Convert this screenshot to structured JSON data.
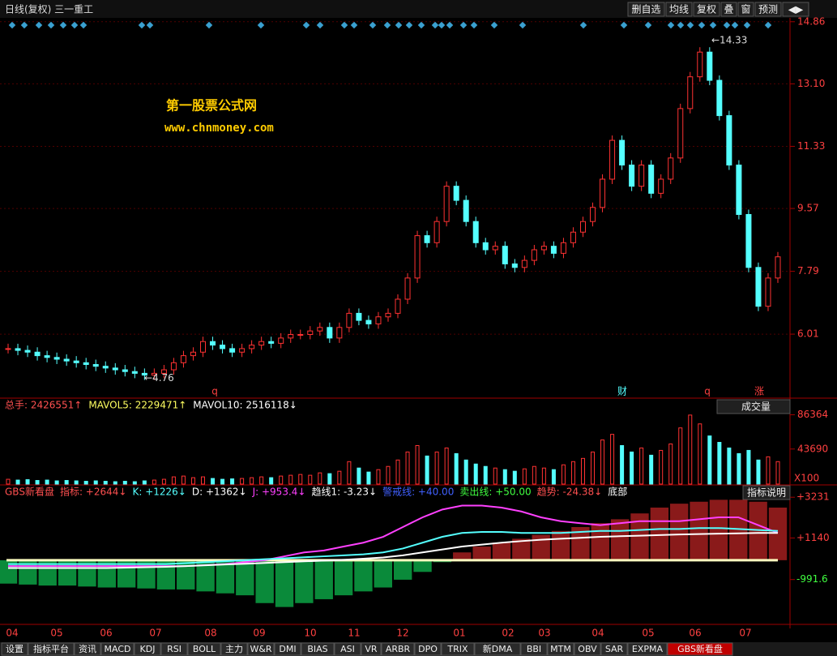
{
  "toolbar": {
    "title": "日线(复权) 三一重工",
    "buttons": [
      "删自选",
      "均线",
      "复权",
      "叠",
      "窗",
      "预测",
      "◀▶"
    ]
  },
  "chart_data": [
    {
      "type": "candlestick",
      "name": "price",
      "values": [
        5.6,
        5.55,
        5.5,
        5.4,
        5.35,
        5.3,
        5.25,
        5.2,
        5.15,
        5.1,
        5.05,
        5.0,
        4.95,
        4.9,
        4.85,
        4.9,
        5.0,
        5.2,
        5.4,
        5.5,
        5.8,
        5.7,
        5.6,
        5.5,
        5.6,
        5.7,
        5.8,
        5.75,
        5.9,
        6.0,
        6.0,
        6.1,
        6.2,
        5.9,
        6.2,
        6.6,
        6.4,
        6.3,
        6.5,
        6.6,
        7.0,
        7.6,
        8.8,
        8.6,
        9.2,
        10.2,
        9.8,
        9.2,
        8.6,
        8.4,
        8.5,
        8.0,
        7.9,
        8.1,
        8.4,
        8.5,
        8.3,
        8.6,
        8.9,
        9.2,
        9.6,
        10.4,
        11.5,
        10.8,
        10.2,
        10.8,
        10.0,
        10.4,
        11.0,
        12.4,
        13.3,
        14.0,
        13.2,
        12.2,
        10.8,
        9.4,
        7.9,
        6.8,
        7.6,
        8.2
      ],
      "up_color": "#ff3232",
      "down_color": "#54ffff",
      "ylim": [
        4.22,
        14.97
      ],
      "yticks": [
        6.01,
        7.79,
        9.57,
        11.33,
        {
          "value": 13.1,
          "label": "13.10"
        },
        14.86
      ],
      "annotations": [
        {
          "label": "←14.33",
          "value": 14.33
        },
        {
          "label": "←4.76",
          "value": 4.76
        }
      ],
      "watermark": [
        "第一股票公式网",
        "www.chnmoney.com"
      ],
      "markers": [
        "q",
        "财",
        "q",
        "涨"
      ],
      "xlabels": [
        "04",
        "05",
        "06",
        "07",
        "08",
        "09",
        "10",
        "11",
        "12",
        "01",
        "02",
        "03",
        "04",
        "05",
        "06",
        "07"
      ]
    },
    {
      "type": "bar",
      "name": "volume",
      "header": [
        {
          "text": "总手: 2426551↑",
          "color": "#ff5050"
        },
        {
          "text": "MAVOL5: 2229471↑",
          "color": "#ffff60"
        },
        {
          "text": "MAVOL10: 2516118↓",
          "color": "#ffffff"
        }
      ],
      "selector": "成交量",
      "values": [
        6000,
        5000,
        5500,
        4500,
        5000,
        4000,
        4500,
        4000,
        3500,
        4000,
        3500,
        3000,
        3500,
        3000,
        4000,
        5000,
        6000,
        9000,
        10000,
        8000,
        9000,
        7000,
        6000,
        6500,
        7000,
        8000,
        9000,
        8000,
        10000,
        11000,
        12000,
        11000,
        14000,
        13000,
        16000,
        28000,
        20000,
        15000,
        18000,
        22000,
        30000,
        40000,
        48000,
        35000,
        40000,
        45000,
        38000,
        30000,
        25000,
        22000,
        20000,
        18000,
        16000,
        19000,
        22000,
        20000,
        18000,
        24000,
        28000,
        32000,
        40000,
        55000,
        62000,
        48000,
        40000,
        45000,
        36000,
        42000,
        50000,
        70000,
        86000,
        75000,
        60000,
        52000,
        45000,
        38000,
        42000,
        30000,
        34000,
        28000
      ],
      "ylim": [
        0,
        98000
      ],
      "yticks": [
        86364,
        43690
      ],
      "unit": "X100"
    },
    {
      "type": "indicator",
      "name": "gbs",
      "header": [
        {
          "text": "GBS新看盘",
          "color": "#ff5050"
        },
        {
          "text": "指标: +2644↓",
          "color": "#ff5050"
        },
        {
          "text": "K: +1226↓",
          "color": "#54ffff"
        },
        {
          "text": "D: +1362↓",
          "color": "#ffffff"
        },
        {
          "text": "J: +953.4↓",
          "color": "#ff40ff"
        },
        {
          "text": "趋线1: -3.23↓",
          "color": "#ffffff"
        },
        {
          "text": "警戒线: +40.00",
          "color": "#4060ff"
        },
        {
          "text": "卖出线: +50.00",
          "color": "#40ff40"
        },
        {
          "text": "趋势: -24.38↓",
          "color": "#ff5050"
        },
        {
          "text": "底部",
          "color": "#ffffff"
        }
      ],
      "button": "指标说明",
      "values": [
        -1200,
        -1250,
        -1300,
        -1300,
        -1350,
        -1400,
        -1400,
        -1450,
        -1500,
        -1500,
        -1600,
        -1700,
        -1800,
        -2200,
        -2400,
        -2200,
        -2000,
        -1800,
        -1600,
        -1400,
        -1000,
        -600,
        -100,
        400,
        700,
        900,
        1100,
        1300,
        1500,
        1700,
        1900,
        2100,
        2400,
        2700,
        2900,
        3000,
        3100,
        3100,
        3000,
        2700
      ],
      "series": [
        {
          "name": "J",
          "color": "#ff40ff",
          "values": [
            -300,
            -300,
            -300,
            -300,
            -300,
            -300,
            -300,
            -300,
            -300,
            -300,
            -250,
            -200,
            -100,
            0,
            200,
            400,
            500,
            700,
            900,
            1200,
            1700,
            2200,
            2600,
            2800,
            2800,
            2700,
            2500,
            2200,
            2000,
            1900,
            1800,
            1900,
            2000,
            2000,
            2000,
            2100,
            2200,
            2200,
            1800,
            1400
          ]
        },
        {
          "name": "K",
          "color": "#54ffff",
          "values": [
            -200,
            -200,
            -200,
            -200,
            -200,
            -200,
            -200,
            -200,
            -200,
            -150,
            -100,
            -50,
            0,
            50,
            100,
            150,
            200,
            250,
            300,
            400,
            600,
            900,
            1200,
            1400,
            1450,
            1450,
            1400,
            1400,
            1400,
            1450,
            1500,
            1500,
            1550,
            1600,
            1600,
            1650,
            1650,
            1600,
            1550,
            1500
          ]
        },
        {
          "name": "D",
          "color": "#ffffff",
          "values": [
            -400,
            -400,
            -400,
            -400,
            -400,
            -400,
            -380,
            -360,
            -340,
            -300,
            -260,
            -220,
            -180,
            -140,
            -100,
            -60,
            -20,
            20,
            80,
            140,
            250,
            400,
            550,
            700,
            800,
            900,
            980,
            1050,
            1100,
            1150,
            1200,
            1230,
            1260,
            1290,
            1320,
            1340,
            1360,
            1380,
            1400,
            1400
          ]
        }
      ],
      "ylim": [
        -3250,
        3780
      ],
      "yticks": [
        {
          "value": 3231,
          "label": "+3231"
        },
        {
          "value": 1140,
          "label": "+1140"
        },
        {
          "value": -991.6,
          "label": "-991.6"
        }
      ]
    }
  ],
  "tabs": [
    "设置",
    "指标平台",
    "资讯",
    "MACD",
    "KDJ",
    "RSI",
    "BOLL",
    "主力",
    "W&R",
    "DMI",
    "BIAS",
    "ASI",
    "VR",
    "ARBR",
    "DPO",
    "TRIX",
    "新DMA",
    "BBI",
    "MTM",
    "OBV",
    "SAR",
    "EXPMA",
    "GBS新看盘"
  ],
  "active_tab": 22
}
